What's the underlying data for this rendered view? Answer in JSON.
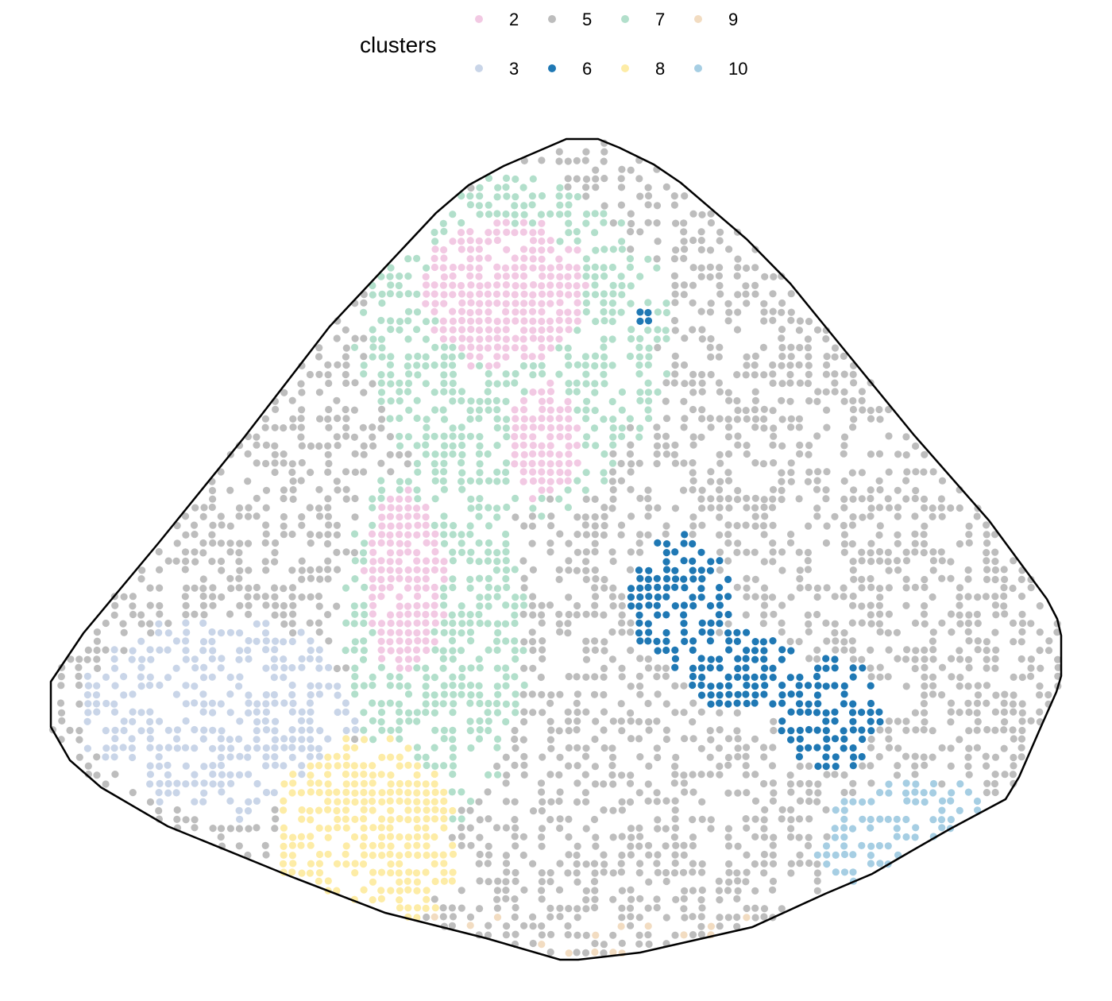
{
  "chart_data": {
    "type": "scatter",
    "legend": {
      "title": "clusters",
      "placement": "top",
      "entries": [
        {
          "label": "2",
          "color": "#f2c9e3"
        },
        {
          "label": "3",
          "color": "#c9d5e8"
        },
        {
          "label": "5",
          "color": "#bdbdbd"
        },
        {
          "label": "6",
          "color": "#1f78b4"
        },
        {
          "label": "7",
          "color": "#b2dfcb"
        },
        {
          "label": "8",
          "color": "#fdeca6"
        },
        {
          "label": "9",
          "color": "#f2dcc1"
        },
        {
          "label": "10",
          "color": "#a6cee3"
        }
      ]
    },
    "grid": false,
    "axes": false,
    "boundary_outline": true,
    "xlim": [
      0,
      100
    ],
    "ylim": [
      0,
      100
    ],
    "cluster_regions": [
      {
        "cluster": "5",
        "shape": "background",
        "density": 0.45
      },
      {
        "cluster": "7",
        "shape": "ellipse",
        "cx": 46,
        "cy": 75,
        "rx": 15,
        "ry": 20,
        "density": 0.55
      },
      {
        "cluster": "7",
        "shape": "ellipse",
        "cx": 38,
        "cy": 40,
        "rx": 9,
        "ry": 22,
        "density": 0.55
      },
      {
        "cluster": "2",
        "shape": "ellipse",
        "cx": 45,
        "cy": 81,
        "rx": 8,
        "ry": 9,
        "density": 0.85
      },
      {
        "cluster": "2",
        "shape": "ellipse",
        "cx": 49,
        "cy": 63,
        "rx": 3.5,
        "ry": 7,
        "density": 0.85
      },
      {
        "cluster": "2",
        "shape": "ellipse",
        "cx": 35,
        "cy": 46,
        "rx": 4,
        "ry": 11,
        "density": 0.85
      },
      {
        "cluster": "6",
        "shape": "ellipse",
        "cx": 62,
        "cy": 44,
        "rx": 5,
        "ry": 8,
        "density": 0.7
      },
      {
        "cluster": "6",
        "shape": "ellipse",
        "cx": 69,
        "cy": 35,
        "rx": 6,
        "ry": 5,
        "density": 0.7
      },
      {
        "cluster": "6",
        "shape": "ellipse",
        "cx": 77,
        "cy": 30,
        "rx": 5,
        "ry": 7,
        "density": 0.7
      },
      {
        "cluster": "6",
        "shape": "ellipse",
        "cx": 58.5,
        "cy": 78,
        "rx": 1.5,
        "ry": 1.5,
        "density": 0.7
      },
      {
        "cluster": "3",
        "shape": "ellipse",
        "cx": 17,
        "cy": 30,
        "rx": 14,
        "ry": 12,
        "density": 0.5
      },
      {
        "cluster": "8",
        "shape": "ellipse",
        "cx": 31,
        "cy": 14,
        "rx": 9,
        "ry": 13,
        "density": 0.7
      },
      {
        "cluster": "10",
        "shape": "ellipse",
        "cx": 86,
        "cy": 14,
        "rx": 10,
        "ry": 8,
        "density": 0.55
      },
      {
        "cluster": "9",
        "shape": "sparse-edge",
        "density": 0.02
      }
    ]
  }
}
